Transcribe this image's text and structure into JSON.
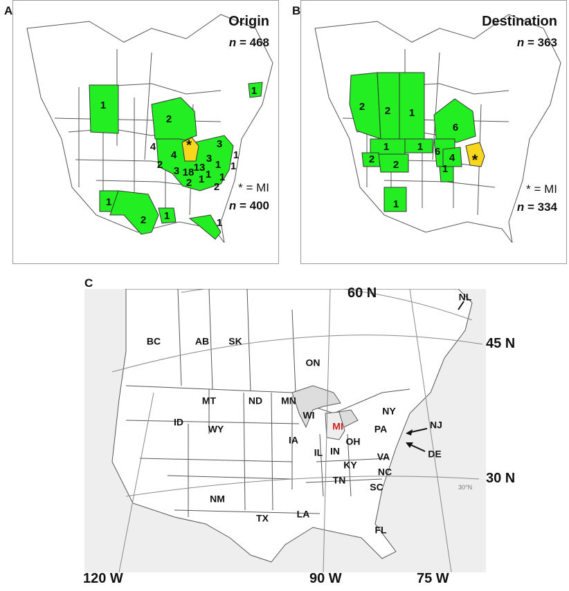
{
  "panels": [
    {
      "letter": "A",
      "title": "Origin",
      "n_label": "n",
      "n_value": "= 468",
      "mi_label": "* = MI",
      "mi_n_value": "= 400",
      "region_counts": [
        {
          "region": "AB",
          "count": "1"
        },
        {
          "region": "ON",
          "count": "2"
        },
        {
          "region": "NL",
          "count": "1"
        },
        {
          "region": "MN",
          "count": "4"
        },
        {
          "region": "IA",
          "count": "2"
        },
        {
          "region": "WI",
          "count": "4"
        },
        {
          "region": "IL",
          "count": "3"
        },
        {
          "region": "IN",
          "count": "18"
        },
        {
          "region": "OH",
          "count": "13"
        },
        {
          "region": "NY",
          "count": "3"
        },
        {
          "region": "PA",
          "count": "3"
        },
        {
          "region": "VT",
          "count": "1"
        },
        {
          "region": "MA",
          "count": "1"
        },
        {
          "region": "NJ",
          "count": "1"
        },
        {
          "region": "WV",
          "count": "1"
        },
        {
          "region": "VA",
          "count": "1"
        },
        {
          "region": "KY",
          "count": "1"
        },
        {
          "region": "TN",
          "count": "2"
        },
        {
          "region": "NC",
          "count": "2"
        },
        {
          "region": "NM",
          "count": "1"
        },
        {
          "region": "TX",
          "count": "2"
        },
        {
          "region": "LA",
          "count": "1"
        },
        {
          "region": "FL",
          "count": "1"
        }
      ]
    },
    {
      "letter": "B",
      "title": "Destination",
      "n_label": "n",
      "n_value": "= 363",
      "mi_label": "* = MI",
      "mi_n_value": "= 334",
      "region_counts": [
        {
          "region": "BC",
          "count": "2"
        },
        {
          "region": "AB",
          "count": "2"
        },
        {
          "region": "SK",
          "count": "1"
        },
        {
          "region": "ON",
          "count": "6"
        },
        {
          "region": "MT",
          "count": "1"
        },
        {
          "region": "ND",
          "count": "1"
        },
        {
          "region": "MN",
          "count": "6"
        },
        {
          "region": "ID",
          "count": "2"
        },
        {
          "region": "WY",
          "count": "2"
        },
        {
          "region": "WI",
          "count": "4"
        },
        {
          "region": "IL",
          "count": "1"
        },
        {
          "region": "NM",
          "count": "1"
        }
      ]
    }
  ],
  "reference_map": {
    "letter": "C",
    "latitudes": [
      "60 N",
      "45 N",
      "30 N"
    ],
    "longitudes": [
      "120 W",
      "90 W",
      "75 W"
    ],
    "graticule_text": "30°N",
    "highlight_state": "MI",
    "highlight_color": "#d0201f",
    "state_labels": [
      "BC",
      "AB",
      "SK",
      "ON",
      "NL",
      "MT",
      "ND",
      "MN",
      "WI",
      "NY",
      "ID",
      "WY",
      "IA",
      "IL",
      "IN",
      "OH",
      "PA",
      "NJ",
      "DE",
      "KY",
      "VA",
      "NC",
      "TN",
      "SC",
      "NM",
      "TX",
      "LA",
      "FL"
    ]
  },
  "colors": {
    "selected": "#22ee22",
    "michigan": "#f6d71c",
    "ocean": "#eeeeee"
  }
}
